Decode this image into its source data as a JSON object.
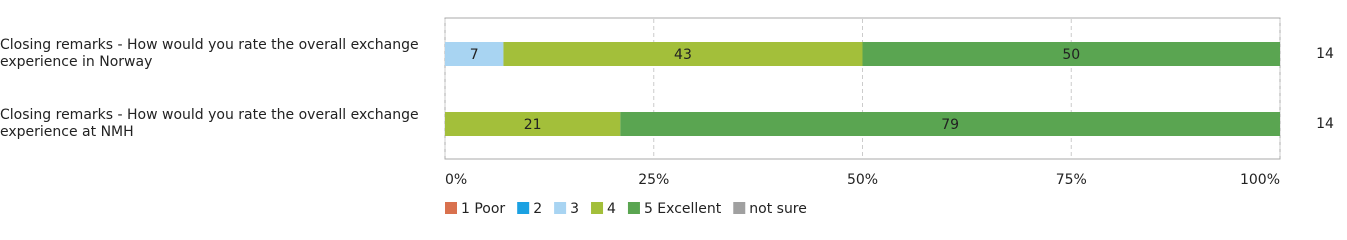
{
  "chart_data": {
    "type": "stacked-bar-horizontal",
    "categories": [
      "Closing remarks - How would you rate the overall exchange experience in Norway",
      "Closing remarks - How would you rate the overall exchange experience at NMH"
    ],
    "series": [
      {
        "name": "1 Poor",
        "color": "#d9714e",
        "values": [
          0,
          0
        ]
      },
      {
        "name": "2",
        "color": "#1ba1e2",
        "values": [
          0,
          0
        ]
      },
      {
        "name": "3",
        "color": "#a8d4f2",
        "values": [
          7,
          0
        ]
      },
      {
        "name": "4",
        "color": "#a3bf3a",
        "values": [
          43,
          21
        ]
      },
      {
        "name": "5 Excellent",
        "color": "#5aa551",
        "values": [
          50,
          79
        ]
      },
      {
        "name": "not sure",
        "color": "#a0a0a0",
        "values": [
          0,
          0
        ]
      }
    ],
    "counts": [
      14,
      14
    ],
    "xlim": [
      0,
      100
    ],
    "xticks": [
      {
        "value": 0,
        "label": "0%"
      },
      {
        "value": 25,
        "label": "25%"
      },
      {
        "value": 50,
        "label": "50%"
      },
      {
        "value": 75,
        "label": "75%"
      },
      {
        "value": 100,
        "label": "100%"
      }
    ],
    "grid": true,
    "legend": "bottom"
  }
}
